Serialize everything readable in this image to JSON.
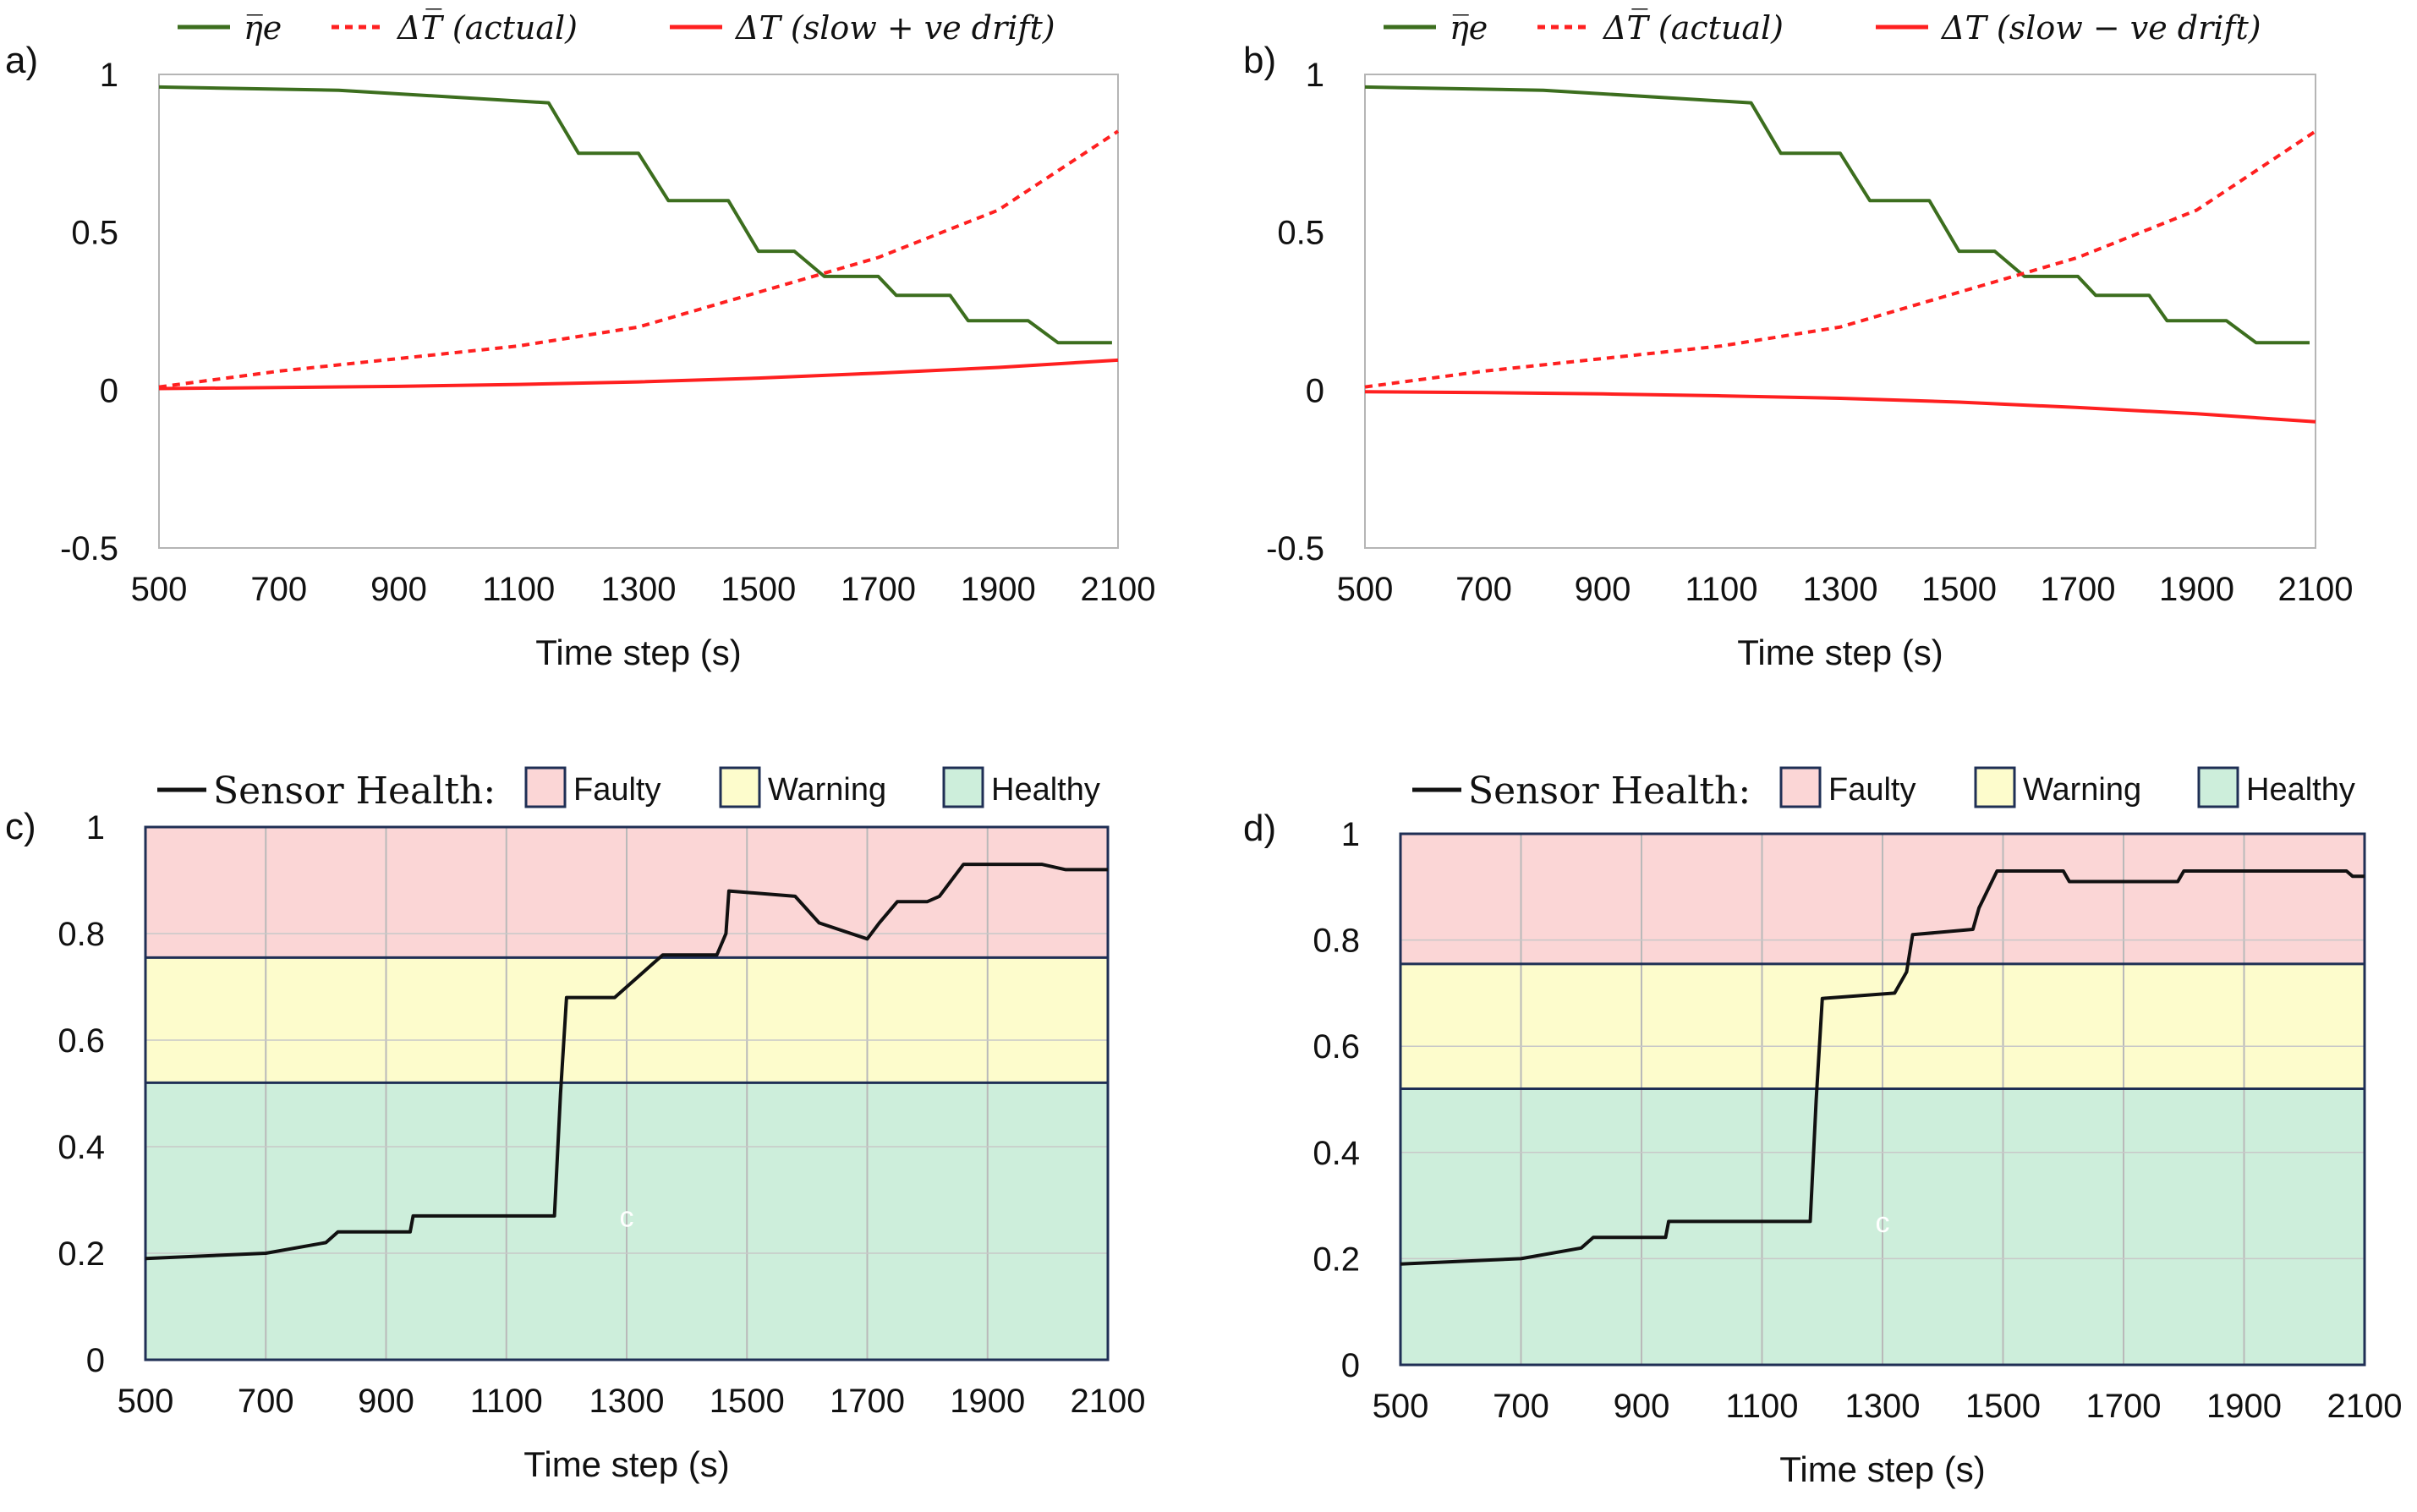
{
  "chart_data": [
    {
      "panel_label": "a)",
      "type": "line",
      "xlabel": "Time step (s)",
      "xlim": [
        500,
        2100
      ],
      "ylim": [
        -0.5,
        1
      ],
      "x_ticks": [
        "500",
        "700",
        "900",
        "1100",
        "1300",
        "1500",
        "1700",
        "1900",
        "2100"
      ],
      "y_ticks": [
        "-0.5",
        "0",
        "0.5",
        "1"
      ],
      "legend": [
        "η̅e",
        "ΔT̅ (actual)",
        "ΔT (slow + ve drift)"
      ],
      "series": [
        {
          "name": "η̅e",
          "color": "#3c6e1e",
          "style": "solid",
          "points": [
            [
              500,
              0.96
            ],
            [
              800,
              0.95
            ],
            [
              1150,
              0.91
            ],
            [
              1200,
              0.75
            ],
            [
              1300,
              0.75
            ],
            [
              1350,
              0.6
            ],
            [
              1450,
              0.6
            ],
            [
              1500,
              0.44
            ],
            [
              1560,
              0.44
            ],
            [
              1610,
              0.36
            ],
            [
              1700,
              0.36
            ],
            [
              1730,
              0.3
            ],
            [
              1820,
              0.3
            ],
            [
              1850,
              0.22
            ],
            [
              1950,
              0.22
            ],
            [
              2000,
              0.15
            ],
            [
              2090,
              0.15
            ]
          ]
        },
        {
          "name": "ΔT̅ (actual)",
          "color": "#ff2020",
          "style": "dotted",
          "points": [
            [
              500,
              0.01
            ],
            [
              700,
              0.06
            ],
            [
              900,
              0.1
            ],
            [
              1100,
              0.14
            ],
            [
              1300,
              0.2
            ],
            [
              1500,
              0.31
            ],
            [
              1700,
              0.42
            ],
            [
              1900,
              0.57
            ],
            [
              2100,
              0.82
            ]
          ]
        },
        {
          "name": "ΔT (slow + ve drift)",
          "color": "#ff2020",
          "style": "solid",
          "points": [
            [
              500,
              0.005
            ],
            [
              700,
              0.008
            ],
            [
              900,
              0.012
            ],
            [
              1100,
              0.018
            ],
            [
              1300,
              0.026
            ],
            [
              1500,
              0.038
            ],
            [
              1700,
              0.054
            ],
            [
              1900,
              0.072
            ],
            [
              2100,
              0.095
            ]
          ]
        }
      ]
    },
    {
      "panel_label": "b)",
      "type": "line",
      "xlabel": "Time step (s)",
      "xlim": [
        500,
        2100
      ],
      "ylim": [
        -0.5,
        1
      ],
      "x_ticks": [
        "500",
        "700",
        "900",
        "1100",
        "1300",
        "1500",
        "1700",
        "1900",
        "2100"
      ],
      "y_ticks": [
        "-0.5",
        "0",
        "0.5",
        "1"
      ],
      "legend": [
        "η̅e",
        "ΔT̅ (actual)",
        "ΔT (slow − ve drift)"
      ],
      "series": [
        {
          "name": "η̅e",
          "color": "#3c6e1e",
          "style": "solid",
          "points": [
            [
              500,
              0.96
            ],
            [
              800,
              0.95
            ],
            [
              1150,
              0.91
            ],
            [
              1200,
              0.75
            ],
            [
              1300,
              0.75
            ],
            [
              1350,
              0.6
            ],
            [
              1450,
              0.6
            ],
            [
              1500,
              0.44
            ],
            [
              1560,
              0.44
            ],
            [
              1610,
              0.36
            ],
            [
              1700,
              0.36
            ],
            [
              1730,
              0.3
            ],
            [
              1820,
              0.3
            ],
            [
              1850,
              0.22
            ],
            [
              1950,
              0.22
            ],
            [
              2000,
              0.15
            ],
            [
              2090,
              0.15
            ]
          ]
        },
        {
          "name": "ΔT̅ (actual)",
          "color": "#ff2020",
          "style": "dotted",
          "points": [
            [
              500,
              0.01
            ],
            [
              700,
              0.06
            ],
            [
              900,
              0.1
            ],
            [
              1100,
              0.14
            ],
            [
              1300,
              0.2
            ],
            [
              1500,
              0.31
            ],
            [
              1700,
              0.42
            ],
            [
              1900,
              0.57
            ],
            [
              2100,
              0.82
            ]
          ]
        },
        {
          "name": "ΔT (slow − ve drift)",
          "color": "#ff2020",
          "style": "solid",
          "points": [
            [
              500,
              -0.005
            ],
            [
              700,
              -0.008
            ],
            [
              900,
              -0.012
            ],
            [
              1100,
              -0.018
            ],
            [
              1300,
              -0.026
            ],
            [
              1500,
              -0.038
            ],
            [
              1700,
              -0.055
            ],
            [
              1900,
              -0.075
            ],
            [
              2100,
              -0.1
            ]
          ]
        }
      ]
    },
    {
      "panel_label": "c)",
      "type": "line",
      "xlabel": "Time step (s)",
      "xlim": [
        500,
        2100
      ],
      "ylim": [
        0,
        1
      ],
      "x_ticks": [
        "500",
        "700",
        "900",
        "1100",
        "1300",
        "1500",
        "1700",
        "1900",
        "2100"
      ],
      "y_ticks": [
        "0",
        "0.2",
        "0.4",
        "0.6",
        "0.8",
        "1"
      ],
      "legend": [
        "Sensor Health:",
        "Faulty",
        "Warning",
        "Healthy"
      ],
      "marker_label": "c",
      "marker_at": [
        1300,
        0.25
      ],
      "bands": [
        {
          "name": "Healthy",
          "range": [
            0,
            0.52
          ],
          "color": "#cdeedb"
        },
        {
          "name": "Warning",
          "range": [
            0.52,
            0.755
          ],
          "color": "#fdfccc"
        },
        {
          "name": "Faulty",
          "range": [
            0.755,
            1
          ],
          "color": "#fbd6d6"
        }
      ],
      "series": [
        {
          "name": "Sensor Health",
          "color": "#111111",
          "style": "solid",
          "points": [
            [
              500,
              0.19
            ],
            [
              700,
              0.2
            ],
            [
              800,
              0.22
            ],
            [
              820,
              0.24
            ],
            [
              940,
              0.24
            ],
            [
              945,
              0.27
            ],
            [
              1180,
              0.27
            ],
            [
              1190,
              0.5
            ],
            [
              1200,
              0.68
            ],
            [
              1280,
              0.68
            ],
            [
              1340,
              0.74
            ],
            [
              1360,
              0.76
            ],
            [
              1450,
              0.76
            ],
            [
              1465,
              0.8
            ],
            [
              1470,
              0.88
            ],
            [
              1580,
              0.87
            ],
            [
              1620,
              0.82
            ],
            [
              1700,
              0.79
            ],
            [
              1720,
              0.82
            ],
            [
              1750,
              0.86
            ],
            [
              1800,
              0.86
            ],
            [
              1820,
              0.87
            ],
            [
              1860,
              0.93
            ],
            [
              1990,
              0.93
            ],
            [
              2030,
              0.92
            ],
            [
              2100,
              0.92
            ]
          ]
        }
      ]
    },
    {
      "panel_label": "d)",
      "type": "line",
      "xlabel": "Time step (s)",
      "xlim": [
        500,
        2100
      ],
      "ylim": [
        0,
        1
      ],
      "x_ticks": [
        "500",
        "700",
        "900",
        "1100",
        "1300",
        "1500",
        "1700",
        "1900",
        "2100"
      ],
      "y_ticks": [
        "0",
        "0.2",
        "0.4",
        "0.6",
        "0.8",
        "1"
      ],
      "legend": [
        "Sensor Health:",
        "Faulty",
        "Warning",
        "Healthy"
      ],
      "marker_label": "c",
      "marker_at": [
        1300,
        0.25
      ],
      "bands": [
        {
          "name": "Healthy",
          "range": [
            0,
            0.52
          ],
          "color": "#cdeedb"
        },
        {
          "name": "Warning",
          "range": [
            0.52,
            0.755
          ],
          "color": "#fdfccc"
        },
        {
          "name": "Faulty",
          "range": [
            0.755,
            1
          ],
          "color": "#fbd6d6"
        }
      ],
      "series": [
        {
          "name": "Sensor Health",
          "color": "#111111",
          "style": "solid",
          "points": [
            [
              500,
              0.19
            ],
            [
              700,
              0.2
            ],
            [
              800,
              0.22
            ],
            [
              820,
              0.24
            ],
            [
              940,
              0.24
            ],
            [
              945,
              0.27
            ],
            [
              1180,
              0.27
            ],
            [
              1190,
              0.5
            ],
            [
              1200,
              0.69
            ],
            [
              1320,
              0.7
            ],
            [
              1340,
              0.74
            ],
            [
              1350,
              0.81
            ],
            [
              1450,
              0.82
            ],
            [
              1460,
              0.86
            ],
            [
              1490,
              0.93
            ],
            [
              1600,
              0.93
            ],
            [
              1610,
              0.91
            ],
            [
              1790,
              0.91
            ],
            [
              1800,
              0.93
            ],
            [
              2070,
              0.93
            ],
            [
              2080,
              0.92
            ],
            [
              2100,
              0.92
            ]
          ]
        }
      ]
    }
  ]
}
